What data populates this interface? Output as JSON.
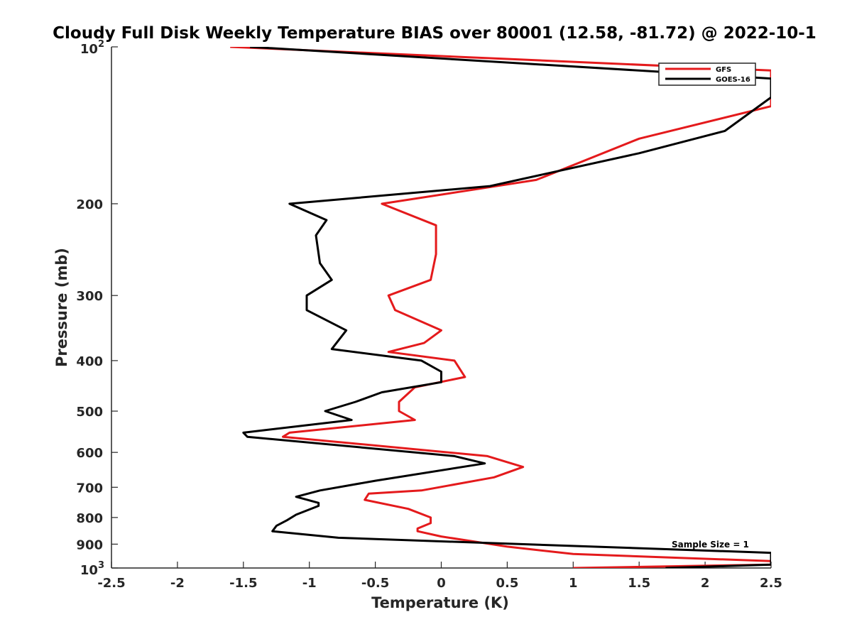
{
  "chart_data": {
    "type": "line",
    "title": "Cloudy Full Disk Weekly Temperature BIAS over 80001 (12.58, -81.72) @ 2022-10-1",
    "xlabel": "Temperature (K)",
    "ylabel": "Pressure (mb)",
    "xlim": [
      -2.5,
      2.5
    ],
    "ylim": [
      100,
      1000
    ],
    "y_scale": "log",
    "y_reversed": true,
    "grid": false,
    "legend_position": "top-right",
    "annotation": "Sample Size = 1",
    "x_ticks": [
      {
        "value": -2.5,
        "label": "-2.5"
      },
      {
        "value": -2,
        "label": "-2"
      },
      {
        "value": -1.5,
        "label": "-1.5"
      },
      {
        "value": -1,
        "label": "-1"
      },
      {
        "value": -0.5,
        "label": "-0.5"
      },
      {
        "value": 0,
        "label": "0"
      },
      {
        "value": 0.5,
        "label": "0.5"
      },
      {
        "value": 1,
        "label": "1"
      },
      {
        "value": 1.5,
        "label": "1.5"
      },
      {
        "value": 2,
        "label": "2"
      },
      {
        "value": 2.5,
        "label": "2.5"
      }
    ],
    "y_ticks": [
      {
        "value": 100,
        "label": "10",
        "sup": "2"
      },
      {
        "value": 200,
        "label": "200"
      },
      {
        "value": 300,
        "label": "300"
      },
      {
        "value": 400,
        "label": "400"
      },
      {
        "value": 500,
        "label": "500"
      },
      {
        "value": 600,
        "label": "600"
      },
      {
        "value": 700,
        "label": "700"
      },
      {
        "value": 800,
        "label": "800"
      },
      {
        "value": 900,
        "label": "900"
      },
      {
        "value": 1000,
        "label": "10",
        "sup": "3"
      }
    ],
    "series": [
      {
        "name": "GFS",
        "color": "#e41a1c",
        "points": [
          [
            -1.6,
            100
          ],
          [
            2.5,
            111
          ],
          [
            2.5,
            130
          ],
          [
            1.5,
            150
          ],
          [
            0.72,
            180
          ],
          [
            -0.45,
            200
          ],
          [
            -0.04,
            220
          ],
          [
            -0.04,
            250
          ],
          [
            -0.08,
            280
          ],
          [
            -0.4,
            300
          ],
          [
            -0.35,
            320
          ],
          [
            0.0,
            350
          ],
          [
            -0.13,
            370
          ],
          [
            -0.4,
            385
          ],
          [
            0.1,
            400
          ],
          [
            0.18,
            430
          ],
          [
            -0.2,
            450
          ],
          [
            -0.32,
            480
          ],
          [
            -0.32,
            500
          ],
          [
            -0.2,
            520
          ],
          [
            -1.15,
            550
          ],
          [
            -1.2,
            560
          ],
          [
            0.35,
            610
          ],
          [
            0.62,
            640
          ],
          [
            0.4,
            670
          ],
          [
            -0.15,
            710
          ],
          [
            -0.55,
            720
          ],
          [
            -0.58,
            740
          ],
          [
            -0.25,
            770
          ],
          [
            -0.08,
            800
          ],
          [
            -0.08,
            820
          ],
          [
            -0.18,
            840
          ],
          [
            -0.18,
            850
          ],
          [
            0.0,
            870
          ],
          [
            0.5,
            910
          ],
          [
            1.0,
            940
          ],
          [
            2.5,
            970
          ],
          [
            2.5,
            985
          ],
          [
            1.0,
            1000
          ]
        ]
      },
      {
        "name": "GOES-16",
        "color": "#000000",
        "points": [
          [
            -1.45,
            100
          ],
          [
            2.5,
            115
          ],
          [
            2.5,
            125
          ],
          [
            2.15,
            145
          ],
          [
            1.5,
            160
          ],
          [
            0.37,
            185
          ],
          [
            -1.15,
            200
          ],
          [
            -0.87,
            215
          ],
          [
            -0.95,
            230
          ],
          [
            -0.92,
            260
          ],
          [
            -0.83,
            280
          ],
          [
            -1.02,
            300
          ],
          [
            -1.02,
            320
          ],
          [
            -0.72,
            350
          ],
          [
            -0.83,
            380
          ],
          [
            -0.15,
            400
          ],
          [
            0.0,
            420
          ],
          [
            0.0,
            440
          ],
          [
            -0.45,
            460
          ],
          [
            -0.65,
            480
          ],
          [
            -0.88,
            500
          ],
          [
            -0.68,
            520
          ],
          [
            -1.5,
            550
          ],
          [
            -1.47,
            560
          ],
          [
            0.1,
            610
          ],
          [
            0.33,
            630
          ],
          [
            -0.5,
            680
          ],
          [
            -0.92,
            710
          ],
          [
            -1.1,
            730
          ],
          [
            -0.93,
            750
          ],
          [
            -0.93,
            760
          ],
          [
            -1.1,
            790
          ],
          [
            -1.17,
            810
          ],
          [
            -1.25,
            830
          ],
          [
            -1.28,
            850
          ],
          [
            -0.78,
            875
          ],
          [
            2.5,
            935
          ],
          [
            2.5,
            985
          ],
          [
            1.7,
            1000
          ]
        ]
      }
    ]
  }
}
